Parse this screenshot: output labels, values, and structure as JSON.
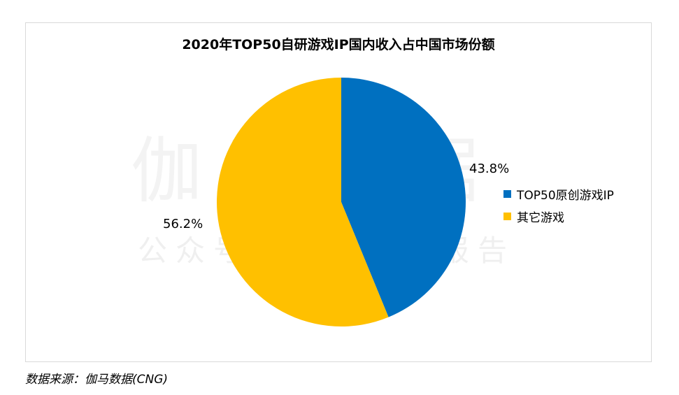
{
  "chart_data": {
    "type": "pie",
    "title": "2020年TOP50自研游戏IP国内收入占中国市场份额",
    "categories": [
      "TOP50原创游戏IP",
      "其它游戏"
    ],
    "values": [
      43.8,
      56.2
    ],
    "labels": [
      "43.8%",
      "56.2%"
    ],
    "colors": [
      "#0070C0",
      "#FFC000"
    ],
    "legend_position": "right",
    "start_angle_deg": 0,
    "direction": "clockwise"
  },
  "watermark": {
    "main": "伽马数据",
    "sub": "公众号：游戏产业报告"
  },
  "source": "数据来源：伽马数据(CNG)"
}
